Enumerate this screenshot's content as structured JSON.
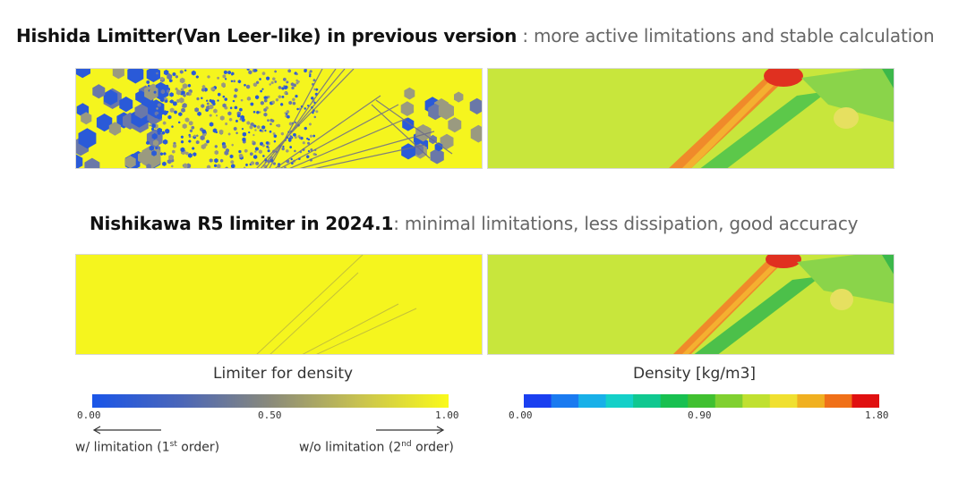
{
  "headings": {
    "previous": {
      "bold": "Hishida Limitter(Van Leer-like) in previous version",
      "light": " : more active limitations and stable calculation"
    },
    "current": {
      "bold": "Nishikawa R5 limiter in 2024.1",
      "light": ": minimal limitations, less dissipation, good accuracy"
    }
  },
  "captions": {
    "limiter": "Limiter for density",
    "density": "Density [kg/m3]"
  },
  "colorbars": {
    "limiter": {
      "min_label": "0.00",
      "mid_label": "0.50",
      "max_label": "1.00",
      "min": 0.0,
      "max": 1.0,
      "low_color": "#1a55e8",
      "high_color": "#fafa1a"
    },
    "density": {
      "min_label": "0.00",
      "mid_label": "0.90",
      "max_label": "1.80",
      "min": 0.0,
      "max": 1.8,
      "low_color": "#1a3ff0",
      "high_color": "#e01010"
    }
  },
  "notes": {
    "left_prefix": "w/ limitation (1",
    "left_sup": "st",
    "left_suffix": " order)",
    "right_prefix": "w/o limitation (2",
    "right_sup": "nd",
    "right_suffix": " order)"
  },
  "colors": {
    "field_background": "#c8e63c",
    "limiter_full": "#f5f51e",
    "limiter_low": "#2a5ad8"
  }
}
